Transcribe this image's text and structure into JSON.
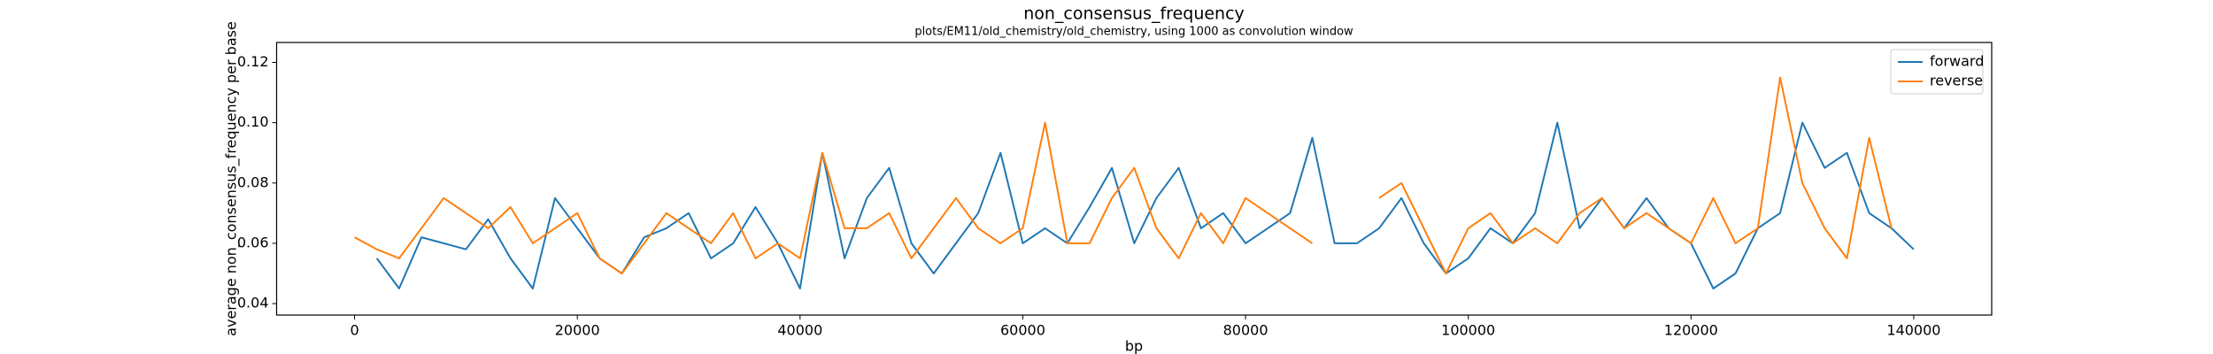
{
  "chart_data": {
    "type": "line",
    "title": "non_consensus_frequency",
    "subtitle": "plots/EM11/old_chemistry/old_chemistry, using 1000 as convolution window",
    "x_label": "bp",
    "y_label": "average non_consensus_frequency per base",
    "x": [
      0,
      2000,
      4000,
      6000,
      8000,
      10000,
      12000,
      14000,
      16000,
      18000,
      20000,
      22000,
      24000,
      26000,
      28000,
      30000,
      32000,
      34000,
      36000,
      38000,
      40000,
      42000,
      44000,
      46000,
      48000,
      50000,
      52000,
      54000,
      56000,
      58000,
      60000,
      62000,
      64000,
      66000,
      68000,
      70000,
      72000,
      74000,
      76000,
      78000,
      80000,
      82000,
      84000,
      86000,
      88000,
      90000,
      92000,
      94000,
      96000,
      98000,
      100000,
      102000,
      104000,
      106000,
      108000,
      110000,
      112000,
      114000,
      116000,
      118000,
      120000,
      122000,
      124000,
      126000,
      128000,
      130000,
      132000,
      134000,
      136000,
      138000,
      140000
    ],
    "series": [
      {
        "name": "forward",
        "color": "#1f77b4",
        "values": [
          null,
          0.055,
          0.045,
          0.062,
          0.06,
          0.058,
          0.068,
          0.055,
          0.045,
          0.075,
          0.065,
          0.055,
          0.05,
          0.062,
          0.065,
          0.07,
          0.055,
          0.06,
          0.072,
          0.06,
          0.045,
          0.09,
          0.055,
          0.075,
          0.085,
          0.06,
          0.05,
          0.06,
          0.07,
          0.09,
          0.06,
          0.065,
          0.06,
          0.072,
          0.085,
          0.06,
          0.075,
          0.085,
          0.065,
          0.07,
          0.06,
          0.065,
          0.07,
          0.095,
          0.06,
          0.06,
          0.065,
          0.075,
          0.06,
          0.05,
          0.055,
          0.065,
          0.06,
          0.07,
          0.1,
          0.065,
          0.075,
          0.065,
          0.075,
          0.065,
          0.06,
          0.045,
          0.05,
          0.065,
          0.07,
          0.1,
          0.085,
          0.09,
          0.07,
          0.065,
          0.058
        ]
      },
      {
        "name": "reverse",
        "color": "#ff7f0e",
        "values": [
          0.062,
          0.058,
          0.055,
          0.065,
          0.075,
          0.07,
          0.065,
          0.072,
          0.06,
          0.065,
          0.07,
          0.055,
          0.05,
          0.06,
          0.07,
          0.065,
          0.06,
          0.07,
          0.055,
          0.06,
          0.055,
          0.09,
          0.065,
          0.065,
          0.07,
          0.055,
          0.065,
          0.075,
          0.065,
          0.06,
          0.065,
          0.1,
          0.06,
          0.06,
          0.075,
          0.085,
          0.065,
          0.055,
          0.07,
          0.06,
          0.075,
          0.07,
          0.065,
          0.06,
          null,
          null,
          0.075,
          0.08,
          0.065,
          0.05,
          0.065,
          0.07,
          0.06,
          0.065,
          0.06,
          0.07,
          0.075,
          0.065,
          0.07,
          0.065,
          0.06,
          0.075,
          0.06,
          0.065,
          0.115,
          0.08,
          0.065,
          0.055,
          0.095,
          0.065,
          null
        ]
      }
    ],
    "xlim": [
      -7000,
      147000
    ],
    "xticks": [
      0,
      20000,
      40000,
      60000,
      80000,
      100000,
      120000,
      140000
    ],
    "ylim": [
      0.0362,
      0.1266
    ],
    "yticks": [
      0.04,
      0.06,
      0.08,
      {
        "value": 0.1,
        "label": "0.10"
      },
      0.12
    ],
    "legend": "upper right"
  }
}
